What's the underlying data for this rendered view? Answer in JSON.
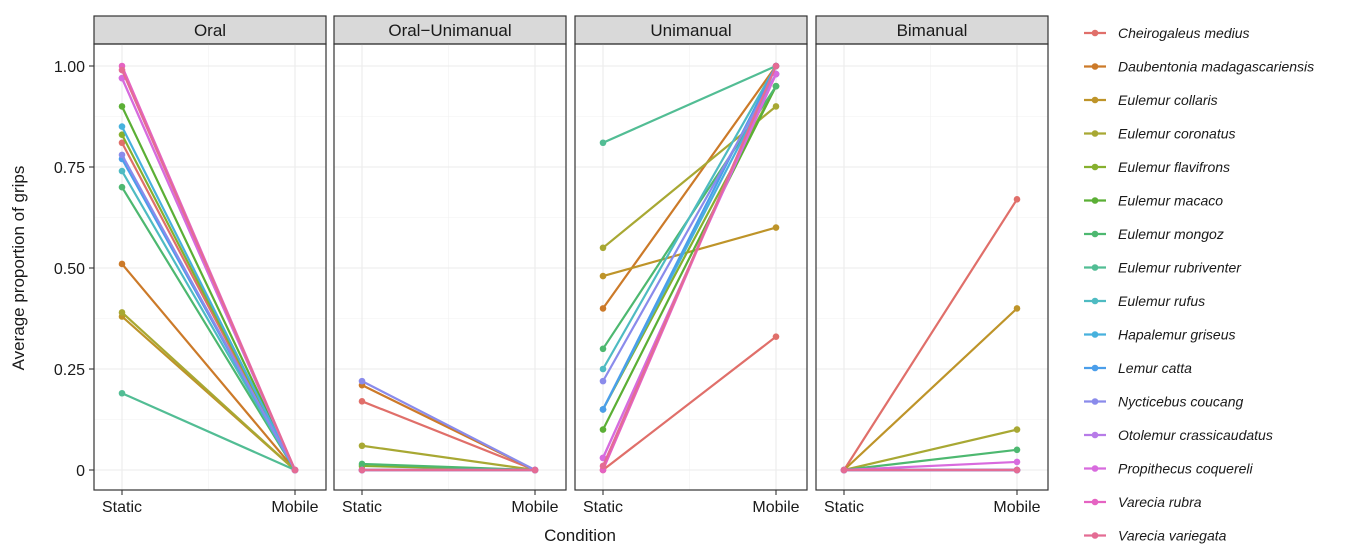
{
  "chart_data": {
    "type": "line",
    "xlabel": "Condition",
    "ylabel": "Average proportion of grips",
    "x_categories": [
      "Static",
      "Mobile"
    ],
    "y_ticks": [
      "0",
      "0.25",
      "0.50",
      "0.75",
      "1.00"
    ],
    "y_tick_values": [
      0,
      0.25,
      0.5,
      0.75,
      1.0
    ],
    "ylim": [
      0,
      1
    ],
    "grid": true,
    "legend_position": "right",
    "panels": [
      {
        "title": "Oral",
        "series": [
          {
            "name": "Cheirogaleus medius",
            "values": [
              0.81,
              0
            ]
          },
          {
            "name": "Daubentonia madagascariensis",
            "values": [
              0.51,
              0
            ]
          },
          {
            "name": "Eulemur collaris",
            "values": [
              0.38,
              0
            ]
          },
          {
            "name": "Eulemur coronatus",
            "values": [
              0.39,
              0
            ]
          },
          {
            "name": "Eulemur flavifrons",
            "values": [
              0.83,
              0
            ]
          },
          {
            "name": "Eulemur macaco",
            "values": [
              0.9,
              0
            ]
          },
          {
            "name": "Eulemur mongoz",
            "values": [
              0.7,
              0
            ]
          },
          {
            "name": "Eulemur rubriventer",
            "values": [
              0.19,
              0
            ]
          },
          {
            "name": "Eulemur rufus",
            "values": [
              0.74,
              0
            ]
          },
          {
            "name": "Hapalemur griseus",
            "values": [
              0.85,
              0
            ]
          },
          {
            "name": "Lemur catta",
            "values": [
              0.77,
              0
            ]
          },
          {
            "name": "Nycticebus coucang",
            "values": [
              0.78,
              0
            ]
          },
          {
            "name": "Otolemur crassicaudatus",
            "values": [
              0.97,
              0
            ]
          },
          {
            "name": "Propithecus coquereli",
            "values": [
              0.97,
              0
            ]
          },
          {
            "name": "Varecia rubra",
            "values": [
              1.0,
              0
            ]
          },
          {
            "name": "Varecia variegata",
            "values": [
              0.99,
              0
            ]
          }
        ]
      },
      {
        "title": "Oral−Unimanual",
        "series": [
          {
            "name": "Cheirogaleus medius",
            "values": [
              0.17,
              0
            ]
          },
          {
            "name": "Daubentonia madagascariensis",
            "values": [
              0.21,
              0
            ]
          },
          {
            "name": "Eulemur collaris",
            "values": [
              0.0,
              0
            ]
          },
          {
            "name": "Eulemur coronatus",
            "values": [
              0.06,
              0
            ]
          },
          {
            "name": "Eulemur flavifrons",
            "values": [
              0.01,
              0
            ]
          },
          {
            "name": "Eulemur macaco",
            "values": [
              0.0,
              0
            ]
          },
          {
            "name": "Eulemur mongoz",
            "values": [
              0.015,
              0
            ]
          },
          {
            "name": "Eulemur rubriventer",
            "values": [
              0.0,
              0
            ]
          },
          {
            "name": "Eulemur rufus",
            "values": [
              0.0,
              0
            ]
          },
          {
            "name": "Hapalemur griseus",
            "values": [
              0.0,
              0
            ]
          },
          {
            "name": "Lemur catta",
            "values": [
              0.0,
              0
            ]
          },
          {
            "name": "Nycticebus coucang",
            "values": [
              0.22,
              0
            ]
          },
          {
            "name": "Otolemur crassicaudatus",
            "values": [
              0.0,
              0
            ]
          },
          {
            "name": "Propithecus coquereli",
            "values": [
              0.0,
              0
            ]
          },
          {
            "name": "Varecia rubra",
            "values": [
              0.0,
              0
            ]
          },
          {
            "name": "Varecia variegata",
            "values": [
              0.0,
              0
            ]
          }
        ]
      },
      {
        "title": "Unimanual",
        "series": [
          {
            "name": "Cheirogaleus medius",
            "values": [
              0.0,
              0.33
            ]
          },
          {
            "name": "Daubentonia madagascariensis",
            "values": [
              0.4,
              1.0
            ]
          },
          {
            "name": "Eulemur collaris",
            "values": [
              0.48,
              0.6
            ]
          },
          {
            "name": "Eulemur coronatus",
            "values": [
              0.55,
              0.9
            ]
          },
          {
            "name": "Eulemur flavifrons",
            "values": [
              0.15,
              0.95
            ]
          },
          {
            "name": "Eulemur macaco",
            "values": [
              0.1,
              0.95
            ]
          },
          {
            "name": "Eulemur mongoz",
            "values": [
              0.3,
              0.95
            ]
          },
          {
            "name": "Eulemur rubriventer",
            "values": [
              0.81,
              1.0
            ]
          },
          {
            "name": "Eulemur rufus",
            "values": [
              0.25,
              1.0
            ]
          },
          {
            "name": "Hapalemur griseus",
            "values": [
              0.15,
              0.98
            ]
          },
          {
            "name": "Lemur catta",
            "values": [
              0.15,
              1.0
            ]
          },
          {
            "name": "Nycticebus coucang",
            "values": [
              0.22,
              0.98
            ]
          },
          {
            "name": "Otolemur crassicaudatus",
            "values": [
              0.03,
              0.98
            ]
          },
          {
            "name": "Propithecus coquereli",
            "values": [
              0.03,
              0.98
            ]
          },
          {
            "name": "Varecia rubra",
            "values": [
              0.0,
              1.0
            ]
          },
          {
            "name": "Varecia variegata",
            "values": [
              0.01,
              1.0
            ]
          }
        ]
      },
      {
        "title": "Bimanual",
        "series": [
          {
            "name": "Cheirogaleus medius",
            "values": [
              0,
              0.67
            ]
          },
          {
            "name": "Daubentonia madagascariensis",
            "values": [
              0,
              0.0
            ]
          },
          {
            "name": "Eulemur collaris",
            "values": [
              0,
              0.4
            ]
          },
          {
            "name": "Eulemur coronatus",
            "values": [
              0,
              0.1
            ]
          },
          {
            "name": "Eulemur flavifrons",
            "values": [
              0,
              0.0
            ]
          },
          {
            "name": "Eulemur macaco",
            "values": [
              0,
              0.0
            ]
          },
          {
            "name": "Eulemur mongoz",
            "values": [
              0,
              0.05
            ]
          },
          {
            "name": "Eulemur rubriventer",
            "values": [
              0,
              0.0
            ]
          },
          {
            "name": "Eulemur rufus",
            "values": [
              0,
              0.0
            ]
          },
          {
            "name": "Hapalemur griseus",
            "values": [
              0,
              0.0
            ]
          },
          {
            "name": "Lemur catta",
            "values": [
              0,
              0.0
            ]
          },
          {
            "name": "Nycticebus coucang",
            "values": [
              0,
              0.0
            ]
          },
          {
            "name": "Otolemur crassicaudatus",
            "values": [
              0,
              0.0
            ]
          },
          {
            "name": "Propithecus coquereli",
            "values": [
              0,
              0.02
            ]
          },
          {
            "name": "Varecia rubra",
            "values": [
              0,
              0.0
            ]
          },
          {
            "name": "Varecia variegata",
            "values": [
              0,
              0.0
            ]
          }
        ]
      }
    ],
    "legend": [
      {
        "name": "Cheirogaleus medius",
        "color": "#E06F6A"
      },
      {
        "name": "Daubentonia madagascariensis",
        "color": "#CC7A29"
      },
      {
        "name": "Eulemur collaris",
        "color": "#BE9429"
      },
      {
        "name": "Eulemur coronatus",
        "color": "#A8A833"
      },
      {
        "name": "Eulemur flavifrons",
        "color": "#86B02E"
      },
      {
        "name": "Eulemur macaco",
        "color": "#5BAF35"
      },
      {
        "name": "Eulemur mongoz",
        "color": "#4DB870"
      },
      {
        "name": "Eulemur rubriventer",
        "color": "#52BD94"
      },
      {
        "name": "Eulemur rufus",
        "color": "#4EBBC2"
      },
      {
        "name": "Hapalemur griseus",
        "color": "#47B1DD"
      },
      {
        "name": "Lemur catta",
        "color": "#4B9EEA"
      },
      {
        "name": "Nycticebus coucang",
        "color": "#8A8BEB"
      },
      {
        "name": "Otolemur crassicaudatus",
        "color": "#B77BE8"
      },
      {
        "name": "Propithecus coquereli",
        "color": "#D86BDE"
      },
      {
        "name": "Varecia rubra",
        "color": "#E563C2"
      },
      {
        "name": "Varecia variegata",
        "color": "#E46C94"
      }
    ]
  }
}
